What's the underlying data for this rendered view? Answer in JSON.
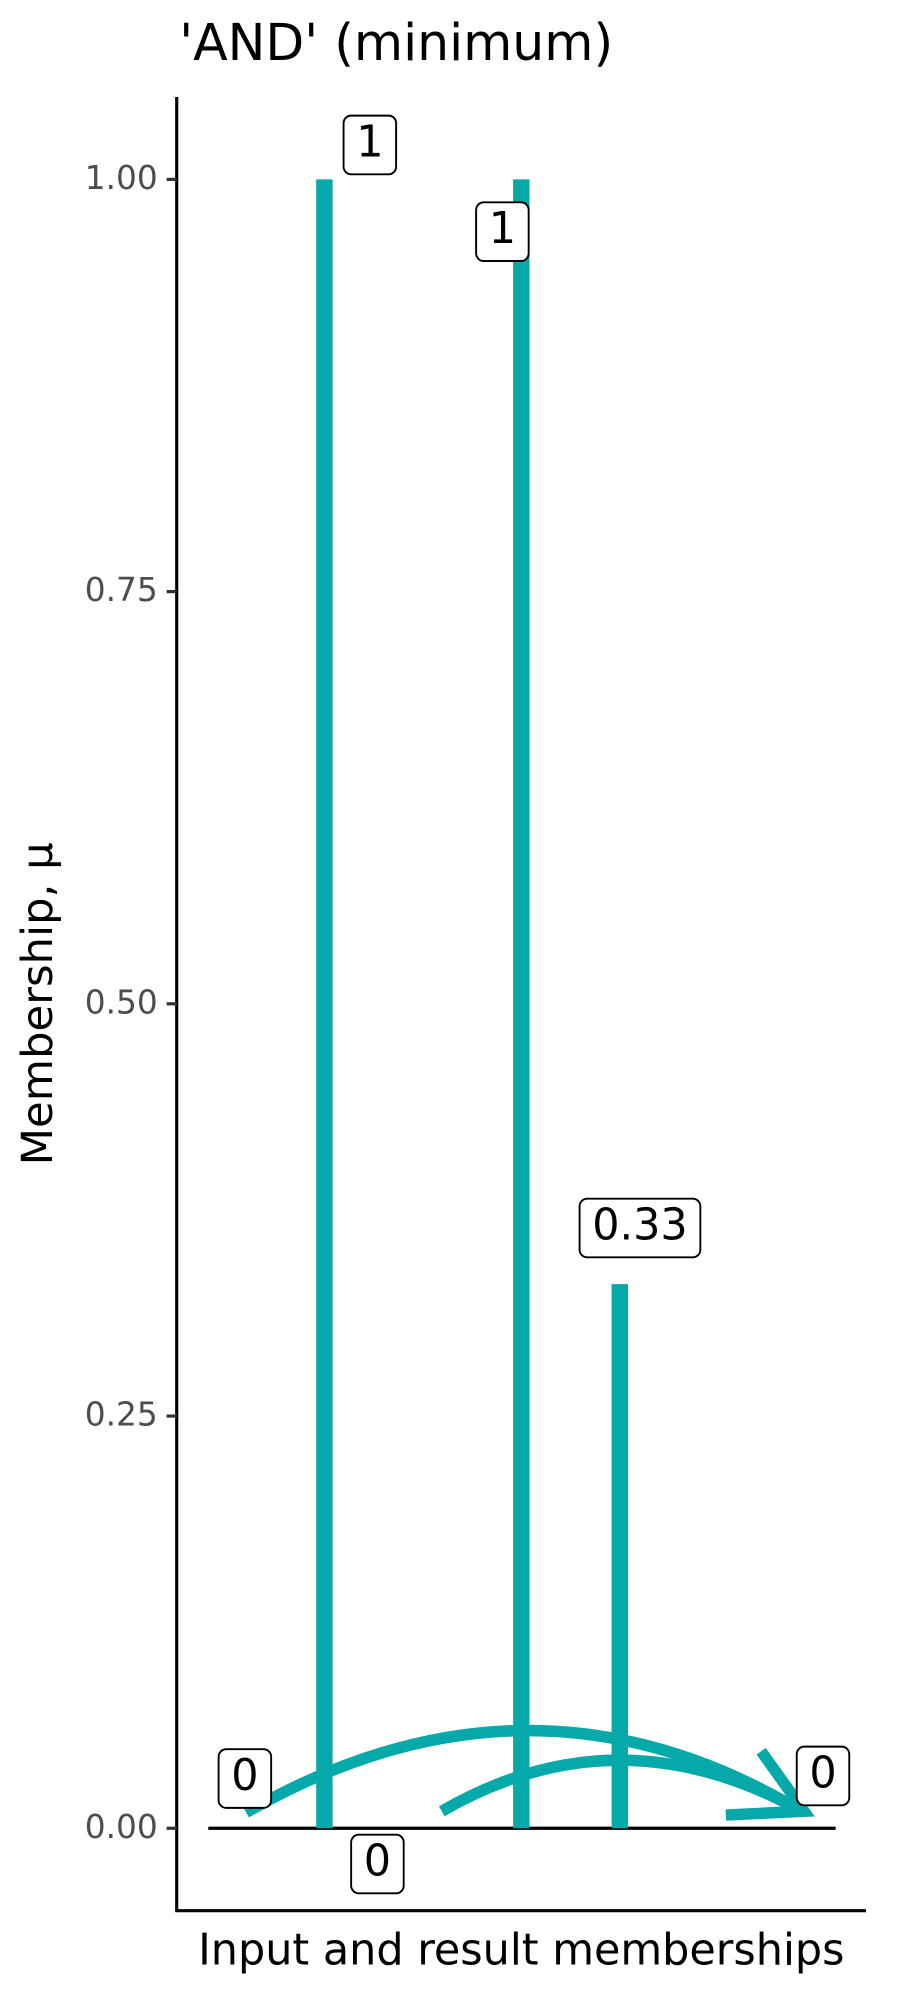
{
  "chart_data": {
    "type": "spike",
    "title": "'AND' (minimum)",
    "x_label": "Input and result memberships",
    "y_label": "Membership, μ",
    "values": [
      0,
      1,
      0,
      1,
      0.33,
      0
    ],
    "value_labels": [
      "0",
      "1",
      "0",
      "1",
      "0.33",
      "0"
    ],
    "color": "#06a9a9",
    "ylim": [
      -0.05,
      1.05
    ],
    "yticks": [
      {
        "value": 0,
        "label": "0.00"
      },
      {
        "value": 0.25,
        "label": "0.25"
      },
      {
        "value": 0.5,
        "label": "0.50"
      },
      {
        "value": 0.75,
        "label": "0.75"
      },
      {
        "value": 1,
        "label": "1.00"
      }
    ]
  }
}
